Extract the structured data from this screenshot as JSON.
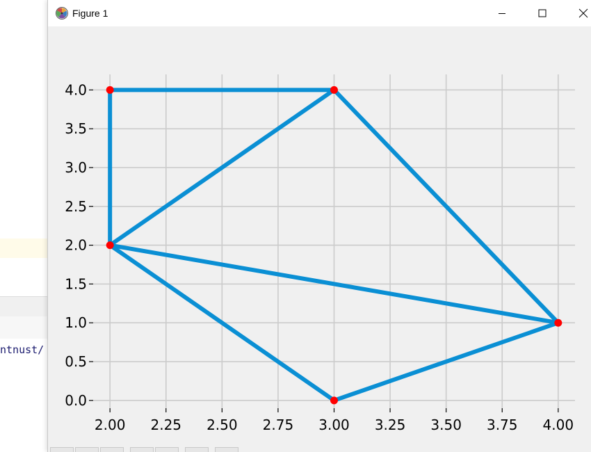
{
  "window": {
    "title": "Figure 1",
    "controls": [
      "minimize-icon",
      "maximize-icon",
      "close-icon"
    ]
  },
  "background": {
    "code_fragment": "ntnust/"
  },
  "colors": {
    "line": "#0a8fd4",
    "marker": "#ff0000",
    "grid": "#cbcbcb",
    "axes_bg": "#f0f0f0"
  },
  "chart_data": {
    "type": "line",
    "title": "",
    "xlabel": "",
    "ylabel": "",
    "xlim": [
      1.925,
      4.075
    ],
    "ylim": [
      -0.1,
      4.2
    ],
    "xticks": [
      2.0,
      2.25,
      2.5,
      2.75,
      3.0,
      3.25,
      3.5,
      3.75,
      4.0
    ],
    "xtick_labels": [
      "2.00",
      "2.25",
      "2.50",
      "2.75",
      "3.00",
      "3.25",
      "3.50",
      "3.75",
      "4.00"
    ],
    "yticks": [
      0.0,
      0.5,
      1.0,
      1.5,
      2.0,
      2.5,
      3.0,
      3.5,
      4.0
    ],
    "ytick_labels": [
      "0.0",
      "0.5",
      "1.0",
      "1.5",
      "2.0",
      "2.5",
      "3.0",
      "3.5",
      "4.0"
    ],
    "grid": true,
    "points": [
      {
        "x": 2,
        "y": 4
      },
      {
        "x": 3,
        "y": 4
      },
      {
        "x": 2,
        "y": 2
      },
      {
        "x": 4,
        "y": 1
      },
      {
        "x": 3,
        "y": 0
      }
    ],
    "edges": [
      [
        [
          2,
          4
        ],
        [
          3,
          4
        ]
      ],
      [
        [
          2,
          4
        ],
        [
          2,
          2
        ]
      ],
      [
        [
          3,
          4
        ],
        [
          2,
          2
        ]
      ],
      [
        [
          3,
          4
        ],
        [
          4,
          1
        ]
      ],
      [
        [
          2,
          2
        ],
        [
          4,
          1
        ]
      ],
      [
        [
          2,
          2
        ],
        [
          3,
          0
        ]
      ],
      [
        [
          3,
          0
        ],
        [
          4,
          1
        ]
      ]
    ]
  }
}
